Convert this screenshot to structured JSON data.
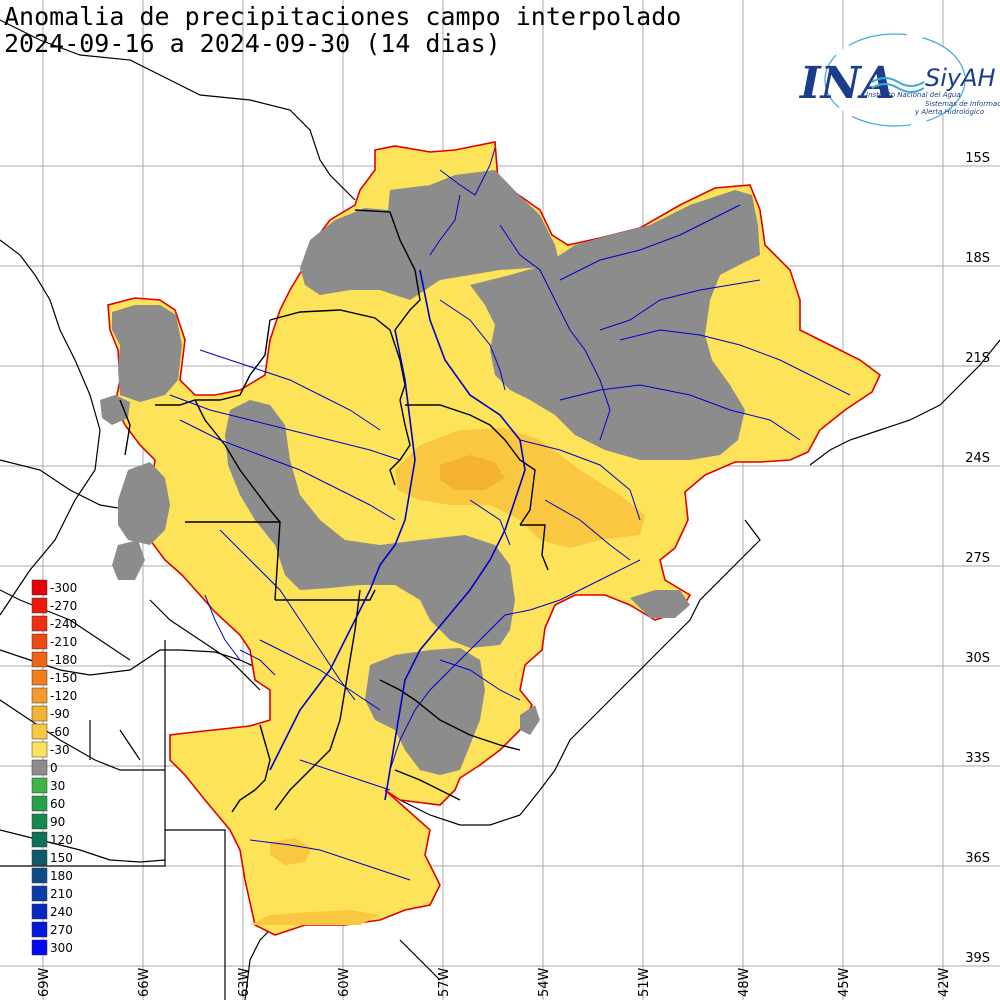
{
  "title": {
    "line1": "Anomalia de precipitaciones campo interpolado",
    "line2": "2024-09-16 a 2024-09-30 (14 dias)"
  },
  "logo": {
    "ina": "INA",
    "siyah": "SiyAH",
    "line1": "Instituto Nacional del Agua",
    "line2": "Sistemas de Información",
    "line3": "y Alerta Hidrológico",
    "color": "#1a3e8c",
    "accent": "#3fa9d8"
  },
  "axes": {
    "lat_ticks": [
      "15S",
      "18S",
      "21S",
      "24S",
      "27S",
      "30S",
      "33S",
      "36S",
      "39S"
    ],
    "lon_ticks": [
      "69W",
      "66W",
      "63W",
      "60W",
      "57W",
      "54W",
      "51W",
      "48W",
      "45W",
      "42W"
    ],
    "grid": true
  },
  "legend": {
    "items": [
      {
        "label": "-300",
        "color": "#e8000a"
      },
      {
        "label": "-270",
        "color": "#ea1a0c"
      },
      {
        "label": "-240",
        "color": "#ec3010"
      },
      {
        "label": "-210",
        "color": "#ee4a14"
      },
      {
        "label": "-180",
        "color": "#f06418"
      },
      {
        "label": "-150",
        "color": "#f27e1e"
      },
      {
        "label": "-120",
        "color": "#f49a28"
      },
      {
        "label": "-90",
        "color": "#f6b232"
      },
      {
        "label": "-60",
        "color": "#f9c840"
      },
      {
        "label": "-30",
        "color": "#fde35a"
      },
      {
        "label": "0",
        "color": "#8c8c8c"
      },
      {
        "label": "30",
        "color": "#3cb44a"
      },
      {
        "label": "60",
        "color": "#27a04a"
      },
      {
        "label": "90",
        "color": "#168850"
      },
      {
        "label": "120",
        "color": "#0e7058"
      },
      {
        "label": "150",
        "color": "#0c5c6a"
      },
      {
        "label": "180",
        "color": "#0c4c88"
      },
      {
        "label": "210",
        "color": "#0a3ca8"
      },
      {
        "label": "240",
        "color": "#0828c4"
      },
      {
        "label": "270",
        "color": "#0618dc"
      },
      {
        "label": "300",
        "color": "#0408f4"
      }
    ]
  },
  "colors": {
    "dry": "#fde35a",
    "dry_more": "#f6b232",
    "normal": "#8c8c8c",
    "basin_outline": "#e00000",
    "rivers": "#0000cc",
    "borders": "#000000"
  }
}
